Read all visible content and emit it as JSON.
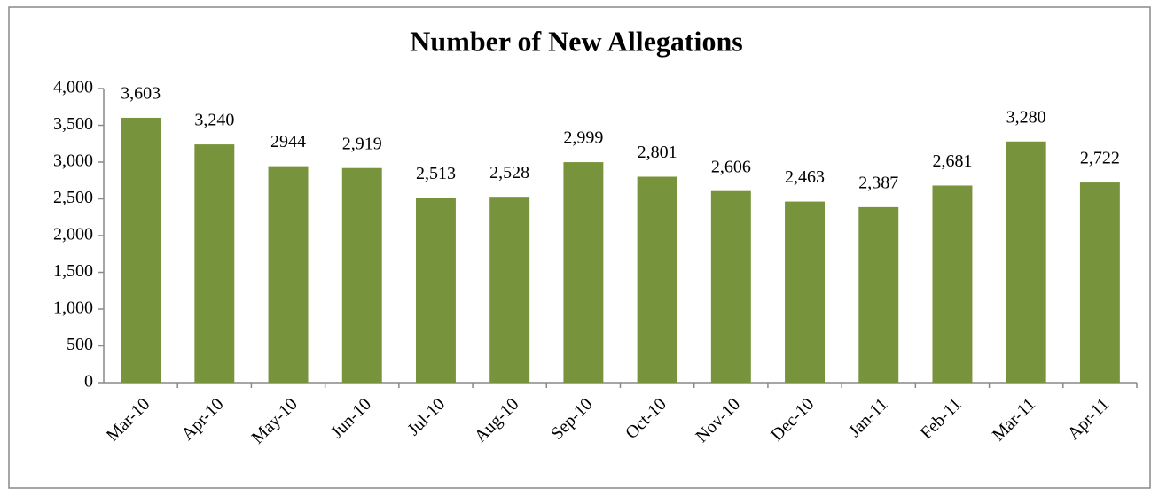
{
  "chart_data": {
    "type": "bar",
    "title": "Number of New Allegations",
    "categories": [
      "Mar-10",
      "Apr-10",
      "May-10",
      "Jun-10",
      "Jul-10",
      "Aug-10",
      "Sep-10",
      "Oct-10",
      "Nov-10",
      "Dec-10",
      "Jan-11",
      "Feb-11",
      "Mar-11",
      "Apr-11"
    ],
    "values": [
      3603,
      3240,
      2944,
      2919,
      2513,
      2528,
      2999,
      2801,
      2606,
      2463,
      2387,
      2681,
      3280,
      2722
    ],
    "value_labels": [
      "3,603",
      "3,240",
      "2944",
      "2,919",
      "2,513",
      "2,528",
      "2,999",
      "2,801",
      "2,606",
      "2,463",
      "2,387",
      "2,681",
      "3,280",
      "2,722"
    ],
    "color": "#77933c",
    "ylim": [
      0,
      4000
    ],
    "yticks": [
      0,
      500,
      {
        "value": 1000,
        "label": "1,000"
      },
      {
        "value": 1500,
        "label": "1,500"
      },
      {
        "value": 2000,
        "label": "2,000"
      },
      {
        "value": 2500,
        "label": "2,500"
      },
      {
        "value": 3000,
        "label": "3,000"
      },
      {
        "value": 3500,
        "label": "3,500"
      },
      {
        "value": 4000,
        "label": "4,000"
      }
    ],
    "grid": false
  }
}
